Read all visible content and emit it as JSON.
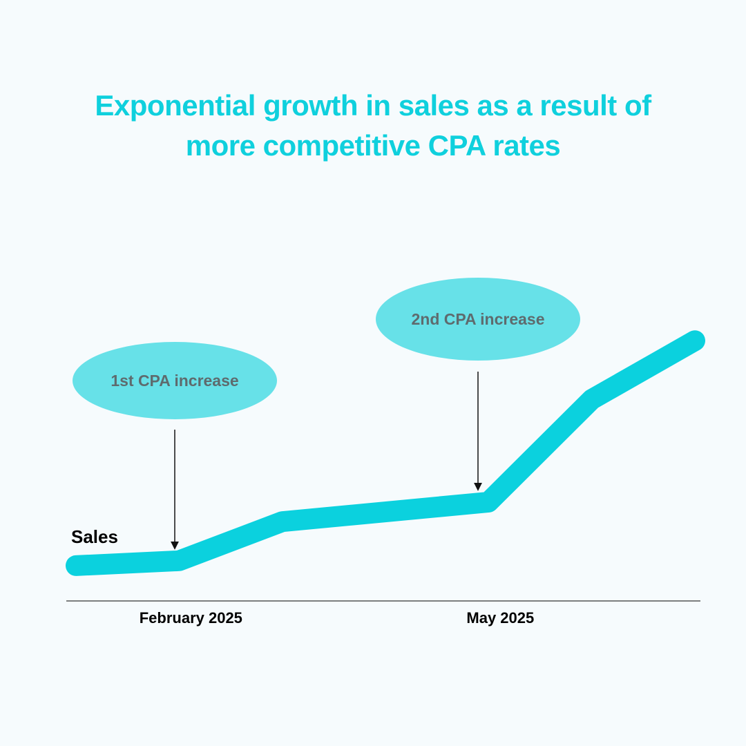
{
  "title": {
    "line1": "Exponential growth in sales as a result of",
    "line2": "more competitive CPA rates"
  },
  "colors": {
    "background": "#f6fbfd",
    "accent": "#0fd0dd",
    "line": "#0bd1de",
    "bubble": "#67e1e8",
    "bubble_text": "#5e6b6e",
    "axis": "#333333"
  },
  "chart_data": {
    "type": "line",
    "title": "Exponential growth in sales as a result of more competitive CPA rates",
    "ylabel": "Sales",
    "xlabel": "",
    "grid": false,
    "axis_range": {
      "x": [
        0,
        6
      ],
      "y": [
        0,
        100
      ]
    },
    "ticks": [
      {
        "x": 1,
        "label": "February 2025"
      },
      {
        "x": 4,
        "label": "May 2025"
      }
    ],
    "series": [
      {
        "name": "Sales",
        "x": [
          0,
          1,
          2,
          4,
          5,
          6
        ],
        "values": [
          2,
          4,
          20,
          28,
          70,
          94
        ]
      }
    ],
    "annotations": [
      {
        "label": "1st CPA increase",
        "x": 1,
        "y": 4
      },
      {
        "label": "2nd CPA increase",
        "x": 4,
        "y": 28
      }
    ]
  }
}
